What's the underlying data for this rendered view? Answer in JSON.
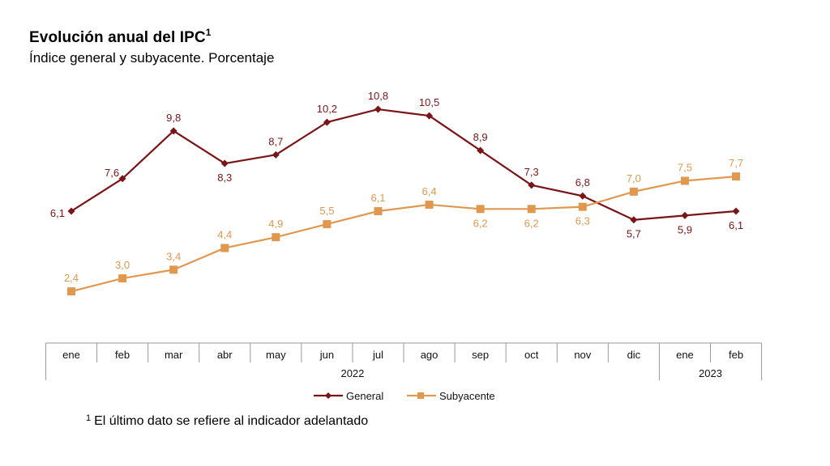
{
  "header": {
    "title": "Evolución anual del IPC",
    "title_sup": "1",
    "subtitle": "Índice general y subyacente. Porcentaje"
  },
  "footnote": {
    "mark": "1",
    "text": "El último dato se refiere al indicador adelantado"
  },
  "colors": {
    "general": "#7b1416",
    "subyacente": "#e0984e",
    "axis": "#999999"
  },
  "chart_data": {
    "type": "line",
    "title": "Evolución anual del IPC",
    "subtitle": "Índice general y subyacente. Porcentaje",
    "xlabel": "",
    "ylabel": "Porcentaje",
    "categories": [
      "ene",
      "feb",
      "mar",
      "abr",
      "may",
      "jun",
      "jul",
      "ago",
      "sep",
      "oct",
      "nov",
      "dic",
      "ene",
      "feb"
    ],
    "year_groups": [
      {
        "label": "2022",
        "start": 0,
        "end": 11
      },
      {
        "label": "2023",
        "start": 12,
        "end": 13
      }
    ],
    "series": [
      {
        "name": "General",
        "marker": "diamond",
        "values": [
          6.1,
          7.6,
          9.8,
          8.3,
          8.7,
          10.2,
          10.8,
          10.5,
          8.9,
          7.3,
          6.8,
          5.7,
          5.9,
          6.1
        ],
        "labels": [
          "6,1",
          "7,6",
          "9,8",
          "8,3",
          "8,7",
          "10,2",
          "10,8",
          "10,5",
          "8,9",
          "7,3",
          "6,8",
          "5,7",
          "5,9",
          "6,1"
        ],
        "label_pos": [
          "left",
          "left",
          "above",
          "below",
          "above",
          "above",
          "above",
          "above",
          "above",
          "above",
          "above",
          "below",
          "below",
          "below"
        ]
      },
      {
        "name": "Subyacente",
        "marker": "square",
        "values": [
          2.4,
          3.0,
          3.4,
          4.4,
          4.9,
          5.5,
          6.1,
          6.4,
          6.2,
          6.2,
          6.3,
          7.0,
          7.5,
          7.7
        ],
        "labels": [
          "2,4",
          "3,0",
          "3,4",
          "4,4",
          "4,9",
          "5,5",
          "6,1",
          "6,4",
          "6,2",
          "6,2",
          "6,3",
          "7,0",
          "7,5",
          "7,7"
        ],
        "label_pos": [
          "above",
          "above",
          "above",
          "above",
          "above",
          "above",
          "above",
          "above",
          "below",
          "below",
          "below",
          "above",
          "above",
          "above"
        ]
      }
    ],
    "ylim": [
      0,
      12
    ],
    "grid": false,
    "y_axis_visible": false,
    "legend": "bottom-center"
  }
}
